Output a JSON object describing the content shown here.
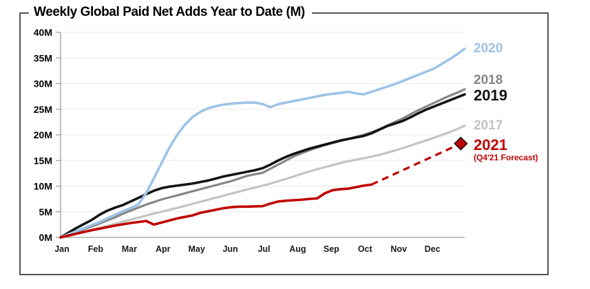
{
  "chart_data": {
    "type": "line",
    "title": "Weekly Global Paid Net Adds Year to Date (M)",
    "unit": "M",
    "grid": "horizontal",
    "legend_position": "right",
    "x_axis": {
      "weeks": 52,
      "tick_labels": [
        "Jan",
        "Feb",
        "Mar",
        "Apr",
        "May",
        "Jun",
        "Jul",
        "Aug",
        "Sep",
        "Oct",
        "Nov",
        "Dec"
      ]
    },
    "y_axis": {
      "min": 0,
      "max": 40,
      "step": 5,
      "tick_labels": [
        "0M",
        "5M",
        "10M",
        "15M",
        "20M",
        "25M",
        "30M",
        "35M",
        "40M"
      ]
    },
    "series": [
      {
        "name": "2017",
        "color": "#C3C3C3",
        "emph": false,
        "style": "solid",
        "values": [
          0,
          0.35,
          0.7,
          1.05,
          1.45,
          1.85,
          2.25,
          2.65,
          3.05,
          3.45,
          3.85,
          4.25,
          4.65,
          5.0,
          5.4,
          5.75,
          6.15,
          6.55,
          6.95,
          7.35,
          7.75,
          8.15,
          8.55,
          8.95,
          9.35,
          9.7,
          10.1,
          10.5,
          10.95,
          11.4,
          11.9,
          12.4,
          12.85,
          13.3,
          13.7,
          14.1,
          14.5,
          14.85,
          15.15,
          15.45,
          15.75,
          16.1,
          16.5,
          16.95,
          17.4,
          17.9,
          18.4,
          18.9,
          19.4,
          19.95,
          20.5,
          21.1,
          21.8
        ]
      },
      {
        "name": "2018",
        "color": "#868686",
        "emph": false,
        "style": "solid",
        "values": [
          0,
          0.5,
          1.0,
          1.6,
          2.1,
          2.7,
          3.3,
          3.9,
          4.6,
          5.2,
          5.8,
          6.4,
          6.9,
          7.4,
          7.8,
          8.2,
          8.6,
          9.0,
          9.4,
          9.8,
          10.2,
          10.6,
          11.0,
          11.5,
          12.0,
          12.3,
          12.6,
          13.4,
          14.2,
          15.0,
          15.8,
          16.4,
          17.0,
          17.5,
          18.0,
          18.4,
          18.8,
          19.2,
          19.6,
          20.0,
          20.5,
          21.1,
          21.8,
          22.5,
          23.2,
          24.0,
          24.8,
          25.5,
          26.2,
          26.9,
          27.6,
          28.2,
          28.9
        ]
      },
      {
        "name": "2019",
        "color": "#121212",
        "emph": true,
        "style": "solid",
        "values": [
          0,
          0.9,
          1.8,
          2.6,
          3.4,
          4.4,
          5.2,
          5.8,
          6.3,
          7.0,
          7.7,
          8.4,
          9.1,
          9.6,
          9.9,
          10.1,
          10.3,
          10.5,
          10.8,
          11.1,
          11.5,
          11.9,
          12.2,
          12.5,
          12.8,
          13.1,
          13.5,
          14.2,
          15.0,
          15.7,
          16.3,
          16.8,
          17.3,
          17.7,
          18.1,
          18.5,
          18.9,
          19.2,
          19.5,
          19.8,
          20.3,
          21.0,
          21.7,
          22.2,
          22.7,
          23.4,
          24.2,
          24.9,
          25.5,
          26.1,
          26.7,
          27.3,
          27.9
        ]
      },
      {
        "name": "2020",
        "color": "#9DC3E6",
        "emph": false,
        "style": "solid",
        "values": [
          0,
          0.6,
          1.2,
          1.8,
          2.4,
          3.0,
          3.7,
          4.4,
          5.1,
          5.7,
          6.4,
          8.6,
          11.5,
          14.5,
          17.5,
          20.0,
          22.0,
          23.5,
          24.5,
          25.2,
          25.6,
          25.9,
          26.1,
          26.2,
          26.3,
          26.3,
          26.0,
          25.4,
          26.0,
          26.3,
          26.6,
          26.9,
          27.2,
          27.5,
          27.8,
          28.0,
          28.2,
          28.4,
          28.1,
          27.9,
          28.4,
          28.9,
          29.4,
          29.9,
          30.5,
          31.1,
          31.7,
          32.3,
          32.9,
          33.8,
          34.7,
          35.7,
          36.8
        ]
      },
      {
        "name": "2021",
        "color": "#C00000",
        "emph": true,
        "style": "solid",
        "values": [
          0,
          0.35,
          0.7,
          1.05,
          1.4,
          1.7,
          2.0,
          2.3,
          2.55,
          2.8,
          3.0,
          3.2,
          2.5,
          2.9,
          3.3,
          3.7,
          4.0,
          4.3,
          4.8,
          5.1,
          5.4,
          5.7,
          5.9,
          6.0,
          6.0,
          6.05,
          6.1,
          6.6,
          7.0,
          7.15,
          7.25,
          7.35,
          7.5,
          7.6,
          8.6,
          9.2,
          9.4,
          9.5,
          9.8,
          10.1,
          10.3
        ]
      }
    ],
    "forecast": {
      "series": "2021",
      "style": "dashed",
      "color": "#C00000",
      "marker": "diamond",
      "from_week": 40,
      "from_value": 10.3,
      "to_week": 51.5,
      "to_value": 18.3,
      "label": "(Q4'21 Forecast)"
    }
  }
}
